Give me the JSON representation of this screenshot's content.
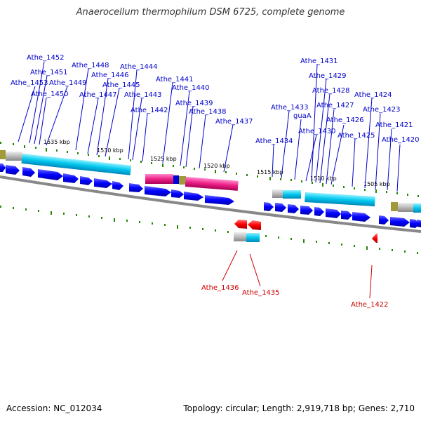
{
  "title": "Anaerocellum thermophilum DSM 6725, complete genome",
  "footer": {
    "accession": "Accession: NC_012034",
    "summary": "Topology: circular; Length: 2,919,718 bp; Genes: 2,710"
  },
  "colors": {
    "forward_gene": "#0000ff",
    "rna_cyan": "#00ccee",
    "rna_pink": "#ee2288",
    "pseudo_gray": "#bbbbbb",
    "olive": "#a09a3a",
    "reverse_gene": "#ff0000",
    "tick_green": "#228800",
    "backbone": "#888888",
    "label_forward": "#0000cc",
    "label_reverse": "#cc0000"
  },
  "scale_labels": [
    "1535 kbp",
    "1530 kbp",
    "1525 kbp",
    "1520 kbp",
    "1515 kbp",
    "1510 kbp",
    "1505 kbp"
  ],
  "forward_labels": [
    "Athe_1452",
    "Athe_1451",
    "Athe_1453",
    "Athe_1450",
    "Athe_1449",
    "Athe_1448",
    "Athe_1447",
    "Athe_1446",
    "Athe_1445",
    "Athe_1444",
    "Athe_1443",
    "Athe_1442",
    "Athe_1441",
    "Athe_1440",
    "Athe_1439",
    "Athe_1438",
    "Athe_1437",
    "Athe_1434",
    "Athe_1433",
    "guaA",
    "Athe_1430",
    "Athe_1431",
    "Athe_1429",
    "Athe_1428",
    "Athe_1427",
    "Athe_1426",
    "Athe_1425",
    "Athe_1424",
    "Athe_1423",
    "Athe_1421",
    "Athe_1420"
  ],
  "reverse_labels": [
    "Athe_1436",
    "Athe_1435",
    "Athe_1422"
  ]
}
